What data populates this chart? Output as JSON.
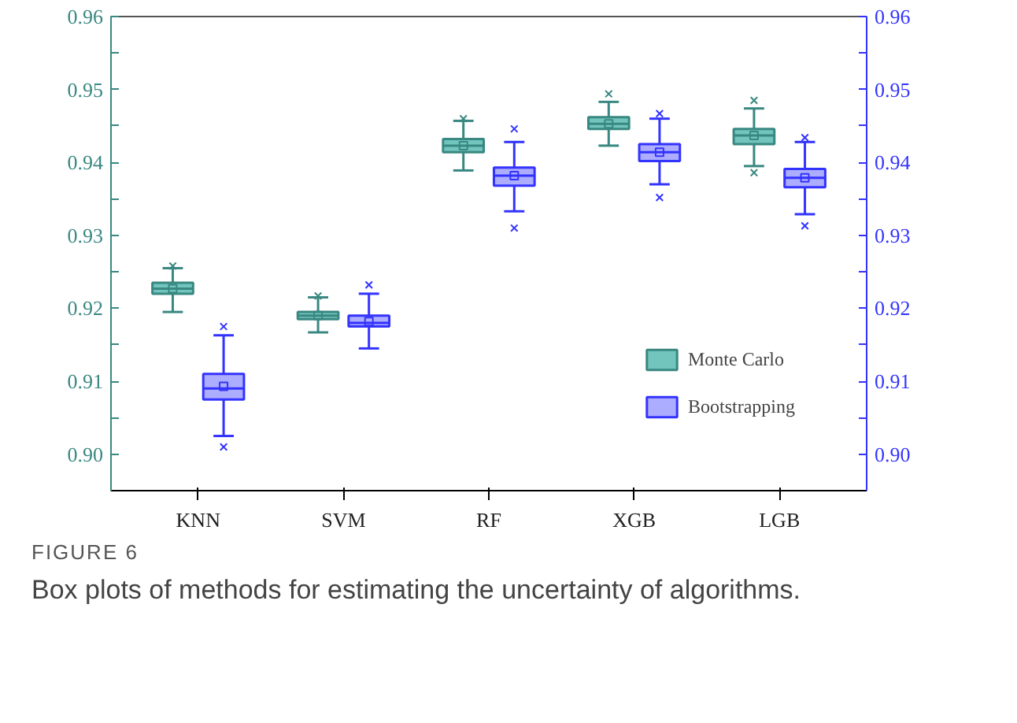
{
  "chart_data": {
    "type": "box",
    "categories": [
      "KNN",
      "SVM",
      "RF",
      "XGB",
      "LGB"
    ],
    "series": [
      {
        "name": "Monte Carlo",
        "color": "#4db6ac",
        "boxes": [
          {
            "low": 0.9195,
            "q1": 0.922,
            "median": 0.9227,
            "q3": 0.9235,
            "high": 0.9255,
            "mean": 0.9227,
            "outliers": [
              0.9258
            ]
          },
          {
            "low": 0.9167,
            "q1": 0.9185,
            "median": 0.919,
            "q3": 0.9195,
            "high": 0.9215,
            "mean": 0.919,
            "outliers": [
              0.9217
            ]
          },
          {
            "low": 0.9389,
            "q1": 0.9414,
            "median": 0.9423,
            "q3": 0.9432,
            "high": 0.9457,
            "mean": 0.9423,
            "outliers": [
              0.946
            ]
          },
          {
            "low": 0.9423,
            "q1": 0.9446,
            "median": 0.9453,
            "q3": 0.9462,
            "high": 0.9483,
            "mean": 0.9453,
            "outliers": [
              0.9494
            ]
          },
          {
            "low": 0.9395,
            "q1": 0.9425,
            "median": 0.9437,
            "q3": 0.9446,
            "high": 0.9474,
            "mean": 0.9437,
            "outliers": [
              0.9386,
              0.9485
            ]
          }
        ]
      },
      {
        "name": "Bootstrapping",
        "color": "#9999ff",
        "boxes": [
          {
            "low": 0.9025,
            "q1": 0.9075,
            "median": 0.909,
            "q3": 0.911,
            "high": 0.9163,
            "mean": 0.9093,
            "outliers": [
              0.901,
              0.9175
            ]
          },
          {
            "low": 0.9145,
            "q1": 0.9175,
            "median": 0.918,
            "q3": 0.919,
            "high": 0.922,
            "mean": 0.9182,
            "outliers": [
              0.9232
            ]
          },
          {
            "low": 0.9333,
            "q1": 0.9368,
            "median": 0.9382,
            "q3": 0.9393,
            "high": 0.9428,
            "mean": 0.9382,
            "outliers": [
              0.931,
              0.9446
            ]
          },
          {
            "low": 0.937,
            "q1": 0.9402,
            "median": 0.9414,
            "q3": 0.9425,
            "high": 0.946,
            "mean": 0.9414,
            "outliers": [
              0.9352,
              0.9467
            ]
          },
          {
            "low": 0.9329,
            "q1": 0.9366,
            "median": 0.9379,
            "q3": 0.9391,
            "high": 0.9428,
            "mean": 0.9379,
            "outliers": [
              0.9313,
              0.9434
            ]
          }
        ]
      }
    ],
    "ylim": [
      0.895,
      0.96
    ],
    "yticks": [
      {
        "value": 0.9,
        "label": "0.90"
      },
      {
        "value": 0.905,
        "label": null
      },
      {
        "value": 0.91,
        "label": "0.91"
      },
      {
        "value": 0.915,
        "label": null
      },
      {
        "value": 0.92,
        "label": "0.92"
      },
      {
        "value": 0.925,
        "label": null
      },
      {
        "value": 0.93,
        "label": "0.93"
      },
      {
        "value": 0.935,
        "label": null
      },
      {
        "value": 0.94,
        "label": "0.94"
      },
      {
        "value": 0.945,
        "label": null
      },
      {
        "value": 0.95,
        "label": "0.95"
      },
      {
        "value": 0.955,
        "label": null
      },
      {
        "value": 0.96,
        "label": "0.96"
      }
    ],
    "y2lim": [
      0.895,
      0.96
    ],
    "y2ticks": [
      {
        "value": 0.9,
        "label": "0.90"
      },
      {
        "value": 0.905,
        "label": null
      },
      {
        "value": 0.91,
        "label": "0.91"
      },
      {
        "value": 0.915,
        "label": null
      },
      {
        "value": 0.92,
        "label": "0.92"
      },
      {
        "value": 0.925,
        "label": null
      },
      {
        "value": 0.93,
        "label": "0.93"
      },
      {
        "value": 0.935,
        "label": null
      },
      {
        "value": 0.94,
        "label": "0.94"
      },
      {
        "value": 0.945,
        "label": null
      },
      {
        "value": 0.95,
        "label": "0.95"
      },
      {
        "value": 0.955,
        "label": null
      },
      {
        "value": 0.96,
        "label": "0.96"
      }
    ],
    "grid": false,
    "legend": "bottom right",
    "annotations": [
      "FIGURE 6",
      "Box plots of methods for estimating the uncertainty of algorithms."
    ]
  }
}
